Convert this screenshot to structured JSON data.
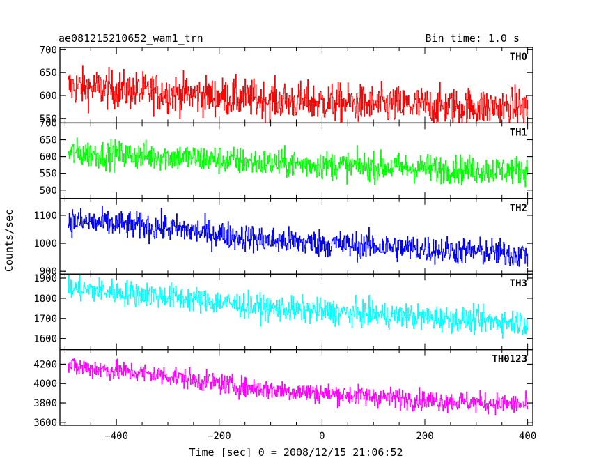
{
  "header": {
    "title": "ae081215210652_wam1_trn",
    "bin_time": "Bin time: 1.0 s"
  },
  "chart_data": {
    "type": "line",
    "xlabel": "Time [sec] 0 = 2008/12/15 21:06:52",
    "ylabel": "Counts/sec",
    "xlim": [
      -510,
      410
    ],
    "x_range": [
      -495,
      400
    ],
    "x_ticks": [
      -400,
      -200,
      0,
      200,
      400
    ],
    "grid": false,
    "series": [
      {
        "name": "TH0",
        "color": "#ff0000",
        "ylim": [
          540,
          705
        ],
        "y_ticks": [
          550,
          600,
          650,
          700
        ],
        "trend": [
          [
            -495,
            620
          ],
          [
            -300,
            605
          ],
          [
            -100,
            590
          ],
          [
            100,
            580
          ],
          [
            300,
            575
          ],
          [
            400,
            575
          ]
        ],
        "noise": 30
      },
      {
        "name": "TH1",
        "color": "#00ff00",
        "ylim": [
          475,
          700
        ],
        "y_ticks": [
          500,
          550,
          600,
          650,
          700
        ],
        "trend": [
          [
            -495,
            610
          ],
          [
            -300,
            600
          ],
          [
            -100,
            580
          ],
          [
            100,
            570
          ],
          [
            300,
            560
          ],
          [
            400,
            560
          ]
        ],
        "noise": 30
      },
      {
        "name": "TH2",
        "color": "#0000ff",
        "ylim": [
          890,
          1160
        ],
        "y_ticks": [
          900,
          1000,
          1100
        ],
        "trend": [
          [
            -495,
            1080
          ],
          [
            -300,
            1055
          ],
          [
            -100,
            1010
          ],
          [
            100,
            990
          ],
          [
            300,
            970
          ],
          [
            400,
            960
          ]
        ],
        "noise": 35
      },
      {
        "name": "TH3",
        "color": "#00ffff",
        "ylim": [
          1545,
          1920
        ],
        "y_ticks": [
          1600,
          1700,
          1800,
          1900
        ],
        "trend": [
          [
            -495,
            1850
          ],
          [
            -300,
            1810
          ],
          [
            -100,
            1750
          ],
          [
            100,
            1720
          ],
          [
            300,
            1690
          ],
          [
            400,
            1680
          ]
        ],
        "noise": 45
      },
      {
        "name": "TH0123",
        "color": "#ff00ff",
        "ylim": [
          3570,
          4350
        ],
        "y_ticks": [
          3600,
          3800,
          4000,
          4200
        ],
        "trend": [
          [
            -495,
            4180
          ],
          [
            -300,
            4080
          ],
          [
            -150,
            3960
          ],
          [
            0,
            3900
          ],
          [
            200,
            3830
          ],
          [
            400,
            3780
          ]
        ],
        "noise": 75
      }
    ]
  }
}
